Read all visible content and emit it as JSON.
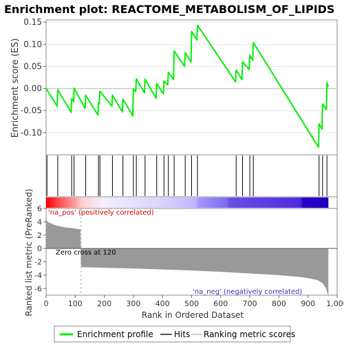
{
  "chart_data": {
    "type": "line",
    "title": "Enrichment plot: REACTOME_METABOLISM_OF_LIPIDS",
    "xlabel": "Rank in Ordered Dataset",
    "top_ylabel": "Enrichment score (ES)",
    "bottom_ylabel": "Ranked list metric (PreRanked)",
    "xlim": [
      0,
      1000
    ],
    "x_ticks": [
      0,
      100,
      200,
      300,
      400,
      500,
      600,
      700,
      800,
      900,
      "1,000"
    ],
    "x_tick_values": [
      0,
      100,
      200,
      300,
      400,
      500,
      600,
      700,
      800,
      900,
      1000
    ],
    "es_ylim": [
      -0.15,
      0.155
    ],
    "es_ticks": [
      "0.15",
      "0.10",
      "0.05",
      "0.00",
      "-0.05",
      "-0.10"
    ],
    "es_tick_values": [
      0.15,
      0.1,
      0.05,
      0.0,
      -0.05,
      -0.1
    ],
    "metric_ylim": [
      -7,
      6
    ],
    "metric_ticks": [
      "6",
      "4",
      "2",
      "0",
      "-2",
      "-4",
      "-6"
    ],
    "metric_tick_values": [
      6,
      4,
      2,
      0,
      -2,
      -4,
      -6
    ],
    "n_ranks": 970,
    "zero_cross_rank": 120,
    "zero_cross_label": "Zero cross at 120",
    "pos_label": "'na_pos' (positively correlated)",
    "neg_label": "'na_neg' (negatively correlated)",
    "hits": [
      3,
      40,
      88,
      96,
      136,
      180,
      185,
      228,
      264,
      300,
      310,
      340,
      380,
      405,
      420,
      440,
      478,
      500,
      520,
      653,
      675,
      700,
      712,
      938,
      950,
      965
    ],
    "es_profile": [
      [
        0,
        0.0
      ],
      [
        38,
        -0.04
      ],
      [
        40,
        -0.003
      ],
      [
        86,
        -0.054
      ],
      [
        88,
        -0.023
      ],
      [
        95,
        -0.03
      ],
      [
        96,
        0.001
      ],
      [
        134,
        -0.045
      ],
      [
        136,
        -0.015
      ],
      [
        178,
        -0.06
      ],
      [
        180,
        -0.032
      ],
      [
        183,
        -0.035
      ],
      [
        185,
        -0.006
      ],
      [
        226,
        -0.04
      ],
      [
        228,
        -0.015
      ],
      [
        262,
        -0.053
      ],
      [
        264,
        -0.024
      ],
      [
        298,
        -0.062
      ],
      [
        300,
        -0.001
      ],
      [
        308,
        -0.007
      ],
      [
        310,
        0.022
      ],
      [
        338,
        -0.01
      ],
      [
        340,
        0.021
      ],
      [
        378,
        -0.022
      ],
      [
        380,
        0.011
      ],
      [
        403,
        -0.012
      ],
      [
        405,
        0.017
      ],
      [
        418,
        0.008
      ],
      [
        420,
        0.037
      ],
      [
        438,
        0.02
      ],
      [
        440,
        0.085
      ],
      [
        476,
        0.05
      ],
      [
        478,
        0.081
      ],
      [
        498,
        0.06
      ],
      [
        500,
        0.129
      ],
      [
        518,
        0.11
      ],
      [
        520,
        0.143
      ],
      [
        651,
        0.015
      ],
      [
        653,
        0.042
      ],
      [
        673,
        0.02
      ],
      [
        675,
        0.06
      ],
      [
        698,
        0.043
      ],
      [
        700,
        0.075
      ],
      [
        710,
        0.064
      ],
      [
        712,
        0.104
      ],
      [
        936,
        -0.133
      ],
      [
        938,
        -0.08
      ],
      [
        948,
        -0.092
      ],
      [
        950,
        -0.035
      ],
      [
        963,
        -0.048
      ],
      [
        965,
        0.013
      ],
      [
        970,
        0.004
      ]
    ],
    "metric_profile": [
      [
        0,
        4.5
      ],
      [
        5,
        4.0
      ],
      [
        30,
        3.5
      ],
      [
        60,
        3.2
      ],
      [
        100,
        3.0
      ],
      [
        118,
        2.85
      ],
      [
        119,
        0.3
      ],
      [
        120,
        -2.8
      ],
      [
        200,
        -2.9
      ],
      [
        300,
        -3.0
      ],
      [
        400,
        -3.15
      ],
      [
        500,
        -3.3
      ],
      [
        600,
        -3.5
      ],
      [
        700,
        -3.75
      ],
      [
        800,
        -4.0
      ],
      [
        880,
        -4.3
      ],
      [
        930,
        -4.7
      ],
      [
        950,
        -5.2
      ],
      [
        962,
        -6.0
      ],
      [
        970,
        -7.2
      ]
    ],
    "legend": [
      "Enrichment profile",
      "Hits",
      "Ranking metric scores"
    ],
    "colors": {
      "enrichment_line": "#00ee00",
      "hits": "#000000",
      "metric_fill": "#999999",
      "pos_label": "#cc0000",
      "neg_label": "#3333aa"
    }
  }
}
